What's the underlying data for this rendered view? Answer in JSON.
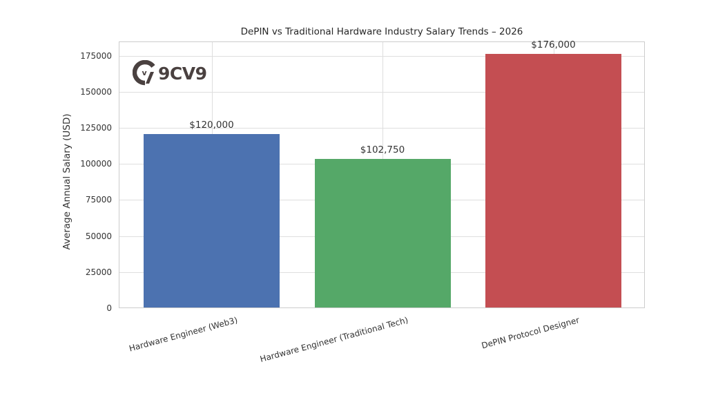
{
  "chart_data": {
    "type": "bar",
    "title": "DePIN vs Traditional Hardware Industry Salary Trends – 2026",
    "xlabel": "",
    "ylabel": "Average Annual Salary (USD)",
    "categories": [
      "Hardware Engineer (Web3)",
      "Hardware Engineer (Traditional Tech)",
      "DePIN Protocol Designer"
    ],
    "values": [
      120000,
      102750,
      176000
    ],
    "value_labels": [
      "$120,000",
      "$102,750",
      "$176,000"
    ],
    "colors": [
      "#4c72b0",
      "#55a868",
      "#c44e52"
    ],
    "ylim": [
      0,
      184800
    ],
    "yticks": [
      0,
      25000,
      50000,
      75000,
      100000,
      125000,
      150000,
      175000
    ],
    "ytick_labels": [
      "0",
      "25000",
      "50000",
      "75000",
      "100000",
      "125000",
      "150000",
      "175000"
    ],
    "grid": true,
    "legend": null,
    "xtick_rotation": 15
  },
  "watermark": {
    "text": "9CV9",
    "mark_letter": "v",
    "color": "#4a4140"
  }
}
